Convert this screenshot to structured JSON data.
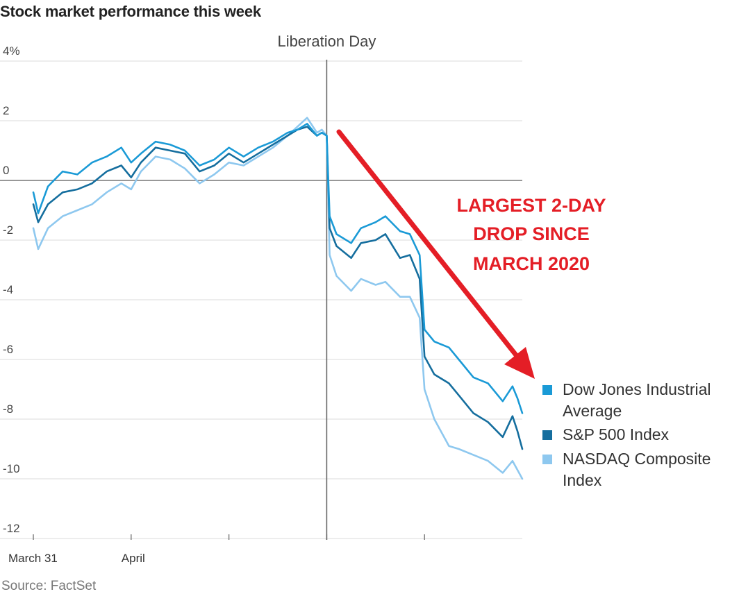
{
  "header": {
    "title": "Stock market performance this week"
  },
  "footer": {
    "source": "Source: FactSet"
  },
  "chart_data": {
    "type": "line",
    "title": "Stock market performance this week",
    "ylim": [
      -12,
      4
    ],
    "y_ticks": [
      {
        "value": 4,
        "label": "4%"
      },
      {
        "value": 2,
        "label": "2"
      },
      {
        "value": 0,
        "label": "0"
      },
      {
        "value": -2,
        "label": "-2"
      },
      {
        "value": -4,
        "label": "-4"
      },
      {
        "value": -6,
        "label": "-6"
      },
      {
        "value": -8,
        "label": "-8"
      },
      {
        "value": -10,
        "label": "-10"
      },
      {
        "value": -12,
        "label": "-12"
      }
    ],
    "x_range": [
      0,
      5
    ],
    "x_ticks": [
      {
        "value": 0,
        "label": "March 31"
      },
      {
        "value": 1,
        "label": "April"
      },
      {
        "value": 2,
        "label": ""
      },
      {
        "value": 3,
        "label": ""
      },
      {
        "value": 4,
        "label": ""
      }
    ],
    "grid": true,
    "legend_position": "right",
    "annotations": [
      {
        "type": "vline",
        "x": 3,
        "label": "Liberation Day"
      },
      {
        "type": "callout",
        "lines": [
          "LARGEST 2-DAY",
          "DROP SINCE",
          "MARCH 2020"
        ],
        "color": "#e41e26"
      }
    ],
    "series": [
      {
        "name": "Dow Jones Industrial Average",
        "legend_lines": [
          "Dow Jones Industrial",
          "Average"
        ],
        "color": "#1a9ad6",
        "points": [
          [
            0,
            -0.4
          ],
          [
            0.05,
            -1.1
          ],
          [
            0.15,
            -0.2
          ],
          [
            0.3,
            0.3
          ],
          [
            0.45,
            0.2
          ],
          [
            0.6,
            0.6
          ],
          [
            0.75,
            0.8
          ],
          [
            0.9,
            1.1
          ],
          [
            1.0,
            0.6
          ],
          [
            1.1,
            0.9
          ],
          [
            1.25,
            1.3
          ],
          [
            1.4,
            1.2
          ],
          [
            1.55,
            1.0
          ],
          [
            1.7,
            0.5
          ],
          [
            1.85,
            0.7
          ],
          [
            2.0,
            1.1
          ],
          [
            2.15,
            0.8
          ],
          [
            2.3,
            1.1
          ],
          [
            2.45,
            1.3
          ],
          [
            2.6,
            1.6
          ],
          [
            2.7,
            1.7
          ],
          [
            2.8,
            1.9
          ],
          [
            2.9,
            1.5
          ],
          [
            2.95,
            1.6
          ],
          [
            3.0,
            1.5
          ],
          [
            3.03,
            -1.2
          ],
          [
            3.1,
            -1.8
          ],
          [
            3.25,
            -2.1
          ],
          [
            3.35,
            -1.6
          ],
          [
            3.5,
            -1.4
          ],
          [
            3.6,
            -1.2
          ],
          [
            3.75,
            -1.7
          ],
          [
            3.85,
            -1.8
          ],
          [
            3.95,
            -2.5
          ],
          [
            4.0,
            -5.0
          ],
          [
            4.1,
            -5.4
          ],
          [
            4.25,
            -5.6
          ],
          [
            4.35,
            -6.0
          ],
          [
            4.5,
            -6.6
          ],
          [
            4.65,
            -6.8
          ],
          [
            4.8,
            -7.4
          ],
          [
            4.9,
            -6.9
          ],
          [
            4.95,
            -7.3
          ],
          [
            5.0,
            -7.8
          ]
        ]
      },
      {
        "name": "S&P 500 Index",
        "legend_lines": [
          "S&P 500 Index"
        ],
        "color": "#156e9e",
        "points": [
          [
            0,
            -0.8
          ],
          [
            0.05,
            -1.4
          ],
          [
            0.15,
            -0.8
          ],
          [
            0.3,
            -0.4
          ],
          [
            0.45,
            -0.3
          ],
          [
            0.6,
            -0.1
          ],
          [
            0.75,
            0.3
          ],
          [
            0.9,
            0.5
          ],
          [
            1.0,
            0.1
          ],
          [
            1.1,
            0.6
          ],
          [
            1.25,
            1.1
          ],
          [
            1.4,
            1.0
          ],
          [
            1.55,
            0.9
          ],
          [
            1.7,
            0.3
          ],
          [
            1.85,
            0.5
          ],
          [
            2.0,
            0.9
          ],
          [
            2.15,
            0.6
          ],
          [
            2.3,
            0.9
          ],
          [
            2.45,
            1.2
          ],
          [
            2.6,
            1.5
          ],
          [
            2.7,
            1.7
          ],
          [
            2.8,
            1.8
          ],
          [
            2.9,
            1.5
          ],
          [
            2.95,
            1.6
          ],
          [
            3.0,
            1.5
          ],
          [
            3.03,
            -1.6
          ],
          [
            3.1,
            -2.2
          ],
          [
            3.25,
            -2.6
          ],
          [
            3.35,
            -2.1
          ],
          [
            3.5,
            -2.0
          ],
          [
            3.6,
            -1.8
          ],
          [
            3.75,
            -2.6
          ],
          [
            3.85,
            -2.5
          ],
          [
            3.95,
            -3.3
          ],
          [
            4.0,
            -5.9
          ],
          [
            4.1,
            -6.5
          ],
          [
            4.25,
            -6.8
          ],
          [
            4.35,
            -7.2
          ],
          [
            4.5,
            -7.8
          ],
          [
            4.65,
            -8.1
          ],
          [
            4.8,
            -8.6
          ],
          [
            4.9,
            -7.9
          ],
          [
            4.95,
            -8.4
          ],
          [
            5.0,
            -9.0
          ]
        ]
      },
      {
        "name": "NASDAQ Composite Index",
        "legend_lines": [
          "NASDAQ Composite",
          "Index"
        ],
        "color": "#8ec8ef",
        "points": [
          [
            0,
            -1.6
          ],
          [
            0.05,
            -2.3
          ],
          [
            0.15,
            -1.6
          ],
          [
            0.3,
            -1.2
          ],
          [
            0.45,
            -1.0
          ],
          [
            0.6,
            -0.8
          ],
          [
            0.75,
            -0.4
          ],
          [
            0.9,
            -0.1
          ],
          [
            1.0,
            -0.3
          ],
          [
            1.1,
            0.3
          ],
          [
            1.25,
            0.8
          ],
          [
            1.4,
            0.7
          ],
          [
            1.55,
            0.4
          ],
          [
            1.7,
            -0.1
          ],
          [
            1.85,
            0.2
          ],
          [
            2.0,
            0.6
          ],
          [
            2.15,
            0.5
          ],
          [
            2.3,
            0.8
          ],
          [
            2.45,
            1.1
          ],
          [
            2.6,
            1.5
          ],
          [
            2.7,
            1.8
          ],
          [
            2.8,
            2.1
          ],
          [
            2.9,
            1.6
          ],
          [
            2.95,
            1.7
          ],
          [
            3.0,
            1.5
          ],
          [
            3.03,
            -2.5
          ],
          [
            3.1,
            -3.2
          ],
          [
            3.25,
            -3.7
          ],
          [
            3.35,
            -3.3
          ],
          [
            3.5,
            -3.5
          ],
          [
            3.6,
            -3.4
          ],
          [
            3.75,
            -3.9
          ],
          [
            3.85,
            -3.9
          ],
          [
            3.95,
            -4.6
          ],
          [
            4.0,
            -7.0
          ],
          [
            4.1,
            -8.0
          ],
          [
            4.25,
            -8.9
          ],
          [
            4.35,
            -9.0
          ],
          [
            4.5,
            -9.2
          ],
          [
            4.65,
            -9.4
          ],
          [
            4.8,
            -9.8
          ],
          [
            4.9,
            -9.4
          ],
          [
            4.95,
            -9.7
          ],
          [
            5.0,
            -10.0
          ]
        ]
      }
    ]
  }
}
